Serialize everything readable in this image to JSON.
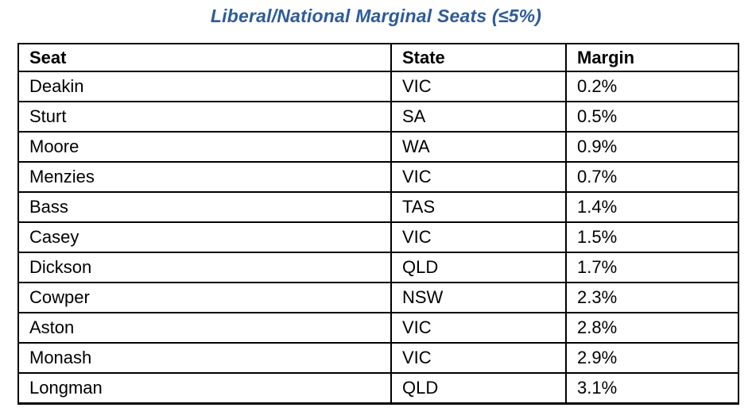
{
  "page": {
    "title": "Liberal/National Marginal Seats (≤5%)",
    "title_color": "#2E5B97",
    "border_color": "#000000",
    "background_color": "#FFFFFF"
  },
  "table": {
    "columns": [
      "Seat",
      "State",
      "Margin"
    ],
    "rows": [
      {
        "seat": "Deakin",
        "state": "VIC",
        "margin": "0.2%"
      },
      {
        "seat": "Sturt",
        "state": "SA",
        "margin": "0.5%"
      },
      {
        "seat": "Moore",
        "state": "WA",
        "margin": "0.9%"
      },
      {
        "seat": "Menzies",
        "state": "VIC",
        "margin": "0.7%"
      },
      {
        "seat": "Bass",
        "state": "TAS",
        "margin": "1.4%"
      },
      {
        "seat": "Casey",
        "state": "VIC",
        "margin": "1.5%"
      },
      {
        "seat": "Dickson",
        "state": "QLD",
        "margin": "1.7%"
      },
      {
        "seat": "Cowper",
        "state": "NSW",
        "margin": "2.3%"
      },
      {
        "seat": "Aston",
        "state": "VIC",
        "margin": "2.8%"
      },
      {
        "seat": "Monash",
        "state": "VIC",
        "margin": "2.9%"
      },
      {
        "seat": "Longman",
        "state": "QLD",
        "margin": "3.1%"
      }
    ]
  }
}
